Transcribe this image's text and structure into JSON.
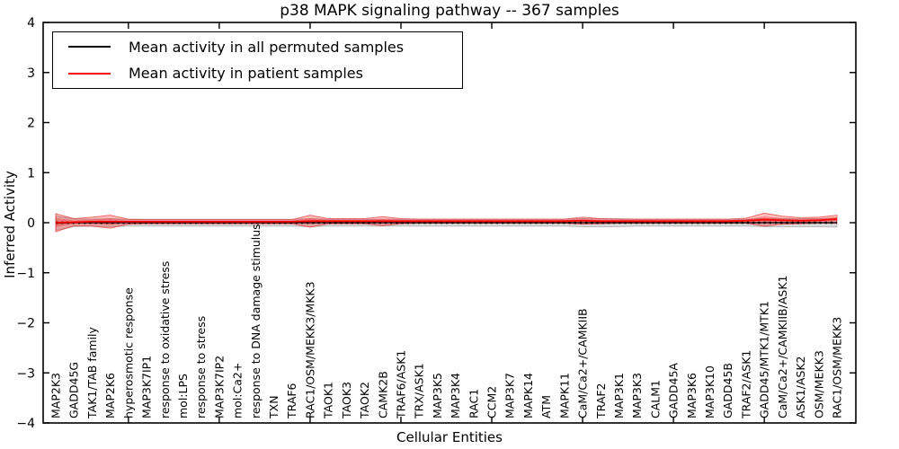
{
  "chart_data": {
    "type": "line",
    "title": "p38 MAPK signaling pathway -- 367 samples",
    "xlabel": "Cellular Entities",
    "ylabel": "Inferred Activity",
    "ylim": [
      -4,
      4
    ],
    "y_ticks": [
      4,
      3,
      2,
      1,
      0,
      -1,
      -2,
      -3,
      -4
    ],
    "legend_position": "upper left",
    "grid": false,
    "zero_reference_line": 0,
    "categories": [
      "MAP2K3",
      "GADD45G",
      "TAK1/TAB family",
      "MAP2K6",
      "hyperosmotic response",
      "MAP3K7IP1",
      "response to oxidative stress",
      "mol:LPS",
      "response to stress",
      "MAP3K7IP2",
      "mol:Ca2+",
      "response to DNA damage stimulus",
      "TXN",
      "TRAF6",
      "RAC1/OSM/MEKK3/MKK3",
      "TAOK1",
      "TAOK3",
      "TAOK2",
      "CAMK2B",
      "TRAF6/ASK1",
      "TRX/ASK1",
      "MAP3K5",
      "MAP3K4",
      "RAC1",
      "CCM2",
      "MAP3K7",
      "MAPK14",
      "ATM",
      "MAPK11",
      "CaM/Ca2+/CAMKIIB",
      "TRAF2",
      "MAP3K1",
      "MAP3K3",
      "CALM1",
      "GADD45A",
      "MAP3K6",
      "MAP3K10",
      "GADD45B",
      "TRAF2/ASK1",
      "GADD45/MTK1/MTK1",
      "CaM/Ca2+/CAMKIIB/ASK1",
      "ASK1/ASK2",
      "OSM/MEKK3",
      "RAC1/OSM/MEKK3"
    ],
    "series": [
      {
        "name": "Mean activity in all permuted samples",
        "color": "#000000",
        "mean": [
          -0.01,
          0,
          0,
          0,
          0,
          0,
          0,
          0,
          0,
          0,
          0,
          0,
          0,
          0,
          0,
          0,
          0,
          0,
          0,
          0,
          0,
          0,
          0,
          0,
          0,
          0,
          0,
          0,
          0,
          0,
          0,
          0,
          0,
          0,
          0,
          0,
          0,
          0,
          0,
          0,
          0,
          0,
          0,
          0
        ],
        "spread": [
          0.14,
          0.08,
          0.07,
          0.08,
          0.07,
          0.07,
          0.07,
          0.07,
          0.07,
          0.07,
          0.07,
          0.07,
          0.07,
          0.07,
          0.08,
          0.07,
          0.07,
          0.07,
          0.07,
          0.07,
          0.07,
          0.07,
          0.07,
          0.07,
          0.07,
          0.07,
          0.07,
          0.07,
          0.07,
          0.08,
          0.08,
          0.08,
          0.07,
          0.07,
          0.07,
          0.07,
          0.07,
          0.07,
          0.07,
          0.08,
          0.08,
          0.08,
          0.08,
          0.09
        ]
      },
      {
        "name": "Mean activity in patient samples",
        "color": "#ff0000",
        "mean": [
          0.0,
          0.01,
          0.02,
          0.02,
          0.02,
          0.02,
          0.02,
          0.02,
          0.02,
          0.02,
          0.02,
          0.02,
          0.02,
          0.02,
          0.03,
          0.03,
          0.03,
          0.03,
          0.03,
          0.03,
          0.03,
          0.03,
          0.03,
          0.03,
          0.03,
          0.03,
          0.03,
          0.03,
          0.03,
          0.04,
          0.03,
          0.03,
          0.03,
          0.03,
          0.03,
          0.03,
          0.03,
          0.03,
          0.04,
          0.06,
          0.05,
          0.04,
          0.05,
          0.07
        ],
        "spread": [
          0.18,
          0.07,
          0.09,
          0.13,
          0.05,
          0.04,
          0.04,
          0.04,
          0.04,
          0.04,
          0.04,
          0.04,
          0.04,
          0.04,
          0.12,
          0.05,
          0.05,
          0.05,
          0.09,
          0.05,
          0.04,
          0.04,
          0.04,
          0.04,
          0.04,
          0.04,
          0.04,
          0.04,
          0.04,
          0.07,
          0.05,
          0.04,
          0.04,
          0.04,
          0.04,
          0.04,
          0.04,
          0.04,
          0.05,
          0.13,
          0.08,
          0.06,
          0.06,
          0.08
        ]
      }
    ]
  }
}
